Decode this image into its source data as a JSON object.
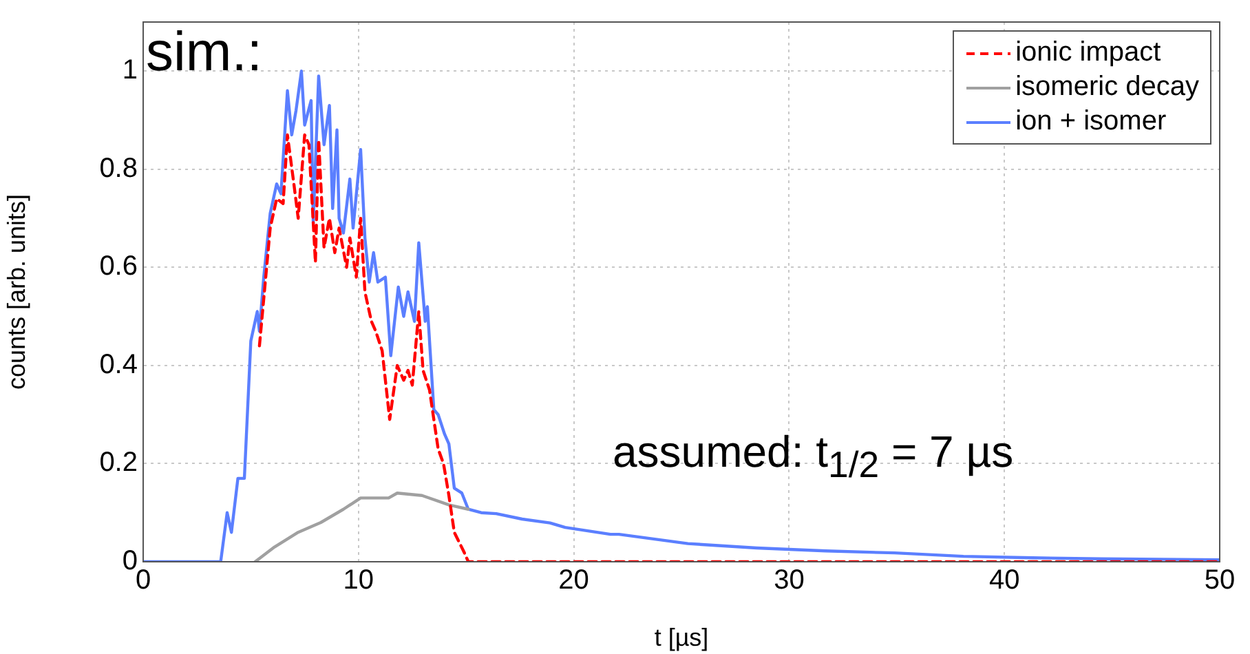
{
  "chart_data": {
    "type": "line",
    "xlabel": "t [µs]",
    "ylabel": "counts [arb. units]",
    "xlim": [
      0,
      50
    ],
    "xticks": [
      0,
      10,
      20,
      30,
      40,
      50
    ],
    "ylim": [
      0,
      1.1
    ],
    "yticks": [
      0,
      0.2,
      0.4,
      0.6,
      0.8,
      1
    ],
    "grid": true,
    "legend": "top right",
    "marker": "none",
    "annotations": [
      "sim.:",
      "assumed: t$_{1/2}$ = 7 µs"
    ],
    "series": [
      {
        "name": "ionic impact",
        "color": "#ff0000",
        "line_style": "dashed",
        "x": [
          5.4,
          5.9,
          6.2,
          6.5,
          6.7,
          7.0,
          7.2,
          7.5,
          7.7,
          8.0,
          8.15,
          8.4,
          8.65,
          8.9,
          9.1,
          9.45,
          9.6,
          9.9,
          10.1,
          10.3,
          10.6,
          10.8,
          11.1,
          11.45,
          11.8,
          12.1,
          12.3,
          12.5,
          12.8,
          13.0,
          13.3,
          13.7,
          13.95,
          14.2,
          14.45,
          14.9,
          15.1,
          20,
          30,
          40,
          50
        ],
        "values": [
          0.44,
          0.68,
          0.74,
          0.73,
          0.87,
          0.77,
          0.7,
          0.87,
          0.85,
          0.61,
          0.86,
          0.64,
          0.7,
          0.63,
          0.68,
          0.6,
          0.66,
          0.58,
          0.7,
          0.55,
          0.49,
          0.47,
          0.43,
          0.29,
          0.4,
          0.37,
          0.39,
          0.36,
          0.51,
          0.39,
          0.35,
          0.23,
          0.2,
          0.135,
          0.06,
          0.02,
          0,
          0,
          0,
          0,
          0
        ]
      },
      {
        "name": "isomeric decay",
        "color": "#a0a0a0",
        "line_style": "solid",
        "x": [
          5.2,
          6.1,
          7.2,
          8.25,
          9.3,
          10.1,
          11.4,
          11.8,
          12.95,
          14.2,
          15.1
        ],
        "values": [
          0,
          0.03,
          0.06,
          0.08,
          0.107,
          0.13,
          0.13,
          0.14,
          0.135,
          0.116,
          0.107
        ]
      },
      {
        "name": "ion + isomer",
        "color": "#5b7fff",
        "line_style": "solid",
        "x": [
          0,
          2.9,
          3.6,
          3.9,
          4.1,
          4.4,
          4.7,
          5.0,
          5.3,
          5.4,
          5.6,
          5.9,
          6.2,
          6.4,
          6.7,
          6.9,
          7.1,
          7.35,
          7.5,
          7.8,
          7.9,
          8.15,
          8.4,
          8.65,
          8.8,
          9.0,
          9.1,
          9.3,
          9.6,
          9.75,
          10.1,
          10.3,
          10.5,
          10.7,
          10.9,
          11.25,
          11.5,
          11.85,
          12.1,
          12.3,
          12.6,
          12.8,
          13.1,
          13.2,
          13.5,
          13.7,
          14.0,
          14.2,
          14.45,
          14.8,
          15.1,
          15.7,
          16.4,
          17.6,
          18.9,
          19.6,
          21.7,
          22.1,
          25.3,
          28.5,
          31.7,
          34.9,
          38.1,
          41.3,
          44.5,
          50
        ],
        "values": [
          0,
          0,
          0,
          0.1,
          0.06,
          0.17,
          0.17,
          0.45,
          0.51,
          0.47,
          0.58,
          0.71,
          0.77,
          0.75,
          0.96,
          0.87,
          0.92,
          1.0,
          0.89,
          0.94,
          0.69,
          0.99,
          0.85,
          0.93,
          0.72,
          0.88,
          0.7,
          0.67,
          0.78,
          0.68,
          0.84,
          0.66,
          0.57,
          0.63,
          0.57,
          0.58,
          0.42,
          0.56,
          0.5,
          0.55,
          0.49,
          0.65,
          0.49,
          0.52,
          0.31,
          0.3,
          0.26,
          0.24,
          0.15,
          0.14,
          0.107,
          0.1,
          0.098,
          0.087,
          0.079,
          0.07,
          0.056,
          0.056,
          0.037,
          0.028,
          0.022,
          0.018,
          0.011,
          0.008,
          0.006,
          0.004
        ]
      }
    ]
  }
}
